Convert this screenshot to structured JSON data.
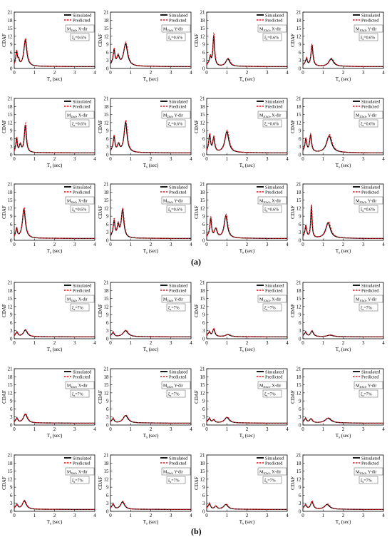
{
  "panel_labels": [
    "(a)",
    "(b)"
  ],
  "axis": {
    "ylabel": "CDAF",
    "xlabel_main": "T",
    "xlabel_sub": "s",
    "xlabel_unit": "(sec)",
    "xlim": [
      0,
      4
    ],
    "ylim": [
      0,
      21
    ],
    "xticks": [
      "0",
      "1",
      "2",
      "3",
      "4"
    ],
    "yticks": [
      "0",
      "3",
      "6",
      "9",
      "12",
      "15",
      "18",
      "21"
    ]
  },
  "legend": {
    "simulated": "Simulated",
    "predicted": "Predicted"
  },
  "colors": {
    "simulated": "#000000",
    "predicted": "#e8141b"
  },
  "chart_data": [
    {
      "group": "(a)",
      "damping": "0.6%",
      "type": "line",
      "panels": [
        {
          "model": "M",
          "sub": "1In3",
          "dir": "X-dir",
          "peaks": [
            [
              0.12,
              5.5,
              0.05
            ],
            [
              0.22,
              2.5,
              0.04
            ],
            [
              0.55,
              10.5,
              0.09
            ]
          ]
        },
        {
          "model": "M",
          "sub": "1In3",
          "dir": "Y-dir",
          "peaks": [
            [
              0.18,
              6.5,
              0.05
            ],
            [
              0.38,
              4.0,
              0.08
            ],
            [
              0.75,
              9.0,
              0.12
            ]
          ]
        },
        {
          "model": "M",
          "sub": "1Ou3",
          "dir": "X-dir",
          "peaks": [
            [
              0.18,
              4.0,
              0.05
            ],
            [
              0.35,
              12.0,
              0.05
            ],
            [
              1.05,
              3.5,
              0.12
            ]
          ]
        },
        {
          "model": "M",
          "sub": "1Ou3",
          "dir": "Y-dir",
          "peaks": [
            [
              0.18,
              3.5,
              0.05
            ],
            [
              0.45,
              8.5,
              0.06
            ],
            [
              1.4,
              3.5,
              0.14
            ]
          ]
        },
        {
          "model": "M",
          "sub": "2In3",
          "dir": "X-dir",
          "peaks": [
            [
              0.12,
              5.5,
              0.04
            ],
            [
              0.3,
              3.5,
              0.06
            ],
            [
              0.55,
              11.0,
              0.06
            ]
          ]
        },
        {
          "model": "M",
          "sub": "2In3",
          "dir": "Y-dir",
          "peaks": [
            [
              0.18,
              6.5,
              0.05
            ],
            [
              0.4,
              3.5,
              0.07
            ],
            [
              0.75,
              12.0,
              0.09
            ]
          ]
        },
        {
          "model": "M",
          "sub": "2Ou3",
          "dir": "X-dir",
          "peaks": [
            [
              0.15,
              7.0,
              0.05
            ],
            [
              0.35,
              6.0,
              0.06
            ],
            [
              1.0,
              8.5,
              0.12
            ]
          ]
        },
        {
          "model": "M",
          "sub": "2Ou3",
          "dir": "Y-dir",
          "peaks": [
            [
              0.15,
              5.5,
              0.05
            ],
            [
              0.38,
              7.0,
              0.06
            ],
            [
              1.3,
              7.0,
              0.15
            ]
          ]
        },
        {
          "model": "M",
          "sub": "3In3",
          "dir": "X-dir",
          "peaks": [
            [
              0.12,
              3.5,
              0.05
            ],
            [
              0.48,
              11.5,
              0.09
            ]
          ]
        },
        {
          "model": "M",
          "sub": "3In3",
          "dir": "Y-dir",
          "peaks": [
            [
              0.18,
              7.0,
              0.05
            ],
            [
              0.38,
              5.0,
              0.06
            ],
            [
              0.6,
              11.0,
              0.08
            ]
          ]
        },
        {
          "model": "M",
          "sub": "3Ou3",
          "dir": "X-dir",
          "peaks": [
            [
              0.2,
              8.0,
              0.05
            ],
            [
              0.45,
              4.0,
              0.08
            ],
            [
              0.95,
              9.0,
              0.1
            ]
          ]
        },
        {
          "model": "M",
          "sub": "3Ou3",
          "dir": "Y-dir",
          "peaks": [
            [
              0.15,
              5.0,
              0.05
            ],
            [
              0.42,
              12.5,
              0.04
            ],
            [
              1.25,
              6.5,
              0.14
            ]
          ]
        }
      ]
    },
    {
      "group": "(b)",
      "damping": "7%",
      "type": "line",
      "panels": [
        {
          "model": "M",
          "sub": "1In3",
          "dir": "X-dir",
          "peaks": [
            [
              0.15,
              2.0,
              0.06
            ],
            [
              0.55,
              3.2,
              0.12
            ]
          ]
        },
        {
          "model": "M",
          "sub": "1In3",
          "dir": "Y-dir",
          "peaks": [
            [
              0.15,
              2.0,
              0.06
            ],
            [
              0.75,
              3.0,
              0.15
            ]
          ]
        },
        {
          "model": "M",
          "sub": "1Ou3",
          "dir": "X-dir",
          "peaks": [
            [
              0.15,
              2.0,
              0.06
            ],
            [
              0.35,
              3.5,
              0.07
            ],
            [
              1.05,
              1.5,
              0.15
            ]
          ]
        },
        {
          "model": "M",
          "sub": "1Ou3",
          "dir": "Y-dir",
          "peaks": [
            [
              0.15,
              2.0,
              0.06
            ],
            [
              0.45,
              2.8,
              0.09
            ],
            [
              1.35,
              1.3,
              0.18
            ]
          ]
        },
        {
          "model": "M",
          "sub": "2In3",
          "dir": "X-dir",
          "peaks": [
            [
              0.15,
              2.0,
              0.06
            ],
            [
              0.55,
              4.0,
              0.12
            ]
          ]
        },
        {
          "model": "M",
          "sub": "2In3",
          "dir": "Y-dir",
          "peaks": [
            [
              0.15,
              2.0,
              0.06
            ],
            [
              0.75,
              3.5,
              0.15
            ]
          ]
        },
        {
          "model": "M",
          "sub": "2Ou3",
          "dir": "X-dir",
          "peaks": [
            [
              0.15,
              2.0,
              0.06
            ],
            [
              0.35,
              1.8,
              0.08
            ],
            [
              1.0,
              2.8,
              0.14
            ]
          ]
        },
        {
          "model": "M",
          "sub": "2Ou3",
          "dir": "Y-dir",
          "peaks": [
            [
              0.15,
              2.0,
              0.06
            ],
            [
              0.4,
              2.2,
              0.09
            ],
            [
              1.25,
              2.5,
              0.18
            ]
          ]
        },
        {
          "model": "M",
          "sub": "3In3",
          "dir": "X-dir",
          "peaks": [
            [
              0.15,
              2.0,
              0.06
            ],
            [
              0.5,
              3.8,
              0.12
            ]
          ]
        },
        {
          "model": "M",
          "sub": "3In3",
          "dir": "Y-dir",
          "peaks": [
            [
              0.15,
              2.3,
              0.06
            ],
            [
              0.6,
              3.5,
              0.12
            ]
          ]
        },
        {
          "model": "M",
          "sub": "3Ou3",
          "dir": "X-dir",
          "peaks": [
            [
              0.15,
              2.5,
              0.06
            ],
            [
              0.45,
              1.8,
              0.08
            ],
            [
              0.95,
              2.5,
              0.13
            ]
          ]
        },
        {
          "model": "M",
          "sub": "3Ou3",
          "dir": "Y-dir",
          "peaks": [
            [
              0.15,
              2.0,
              0.06
            ],
            [
              0.45,
              3.5,
              0.08
            ],
            [
              1.2,
              2.5,
              0.15
            ]
          ]
        }
      ]
    }
  ]
}
